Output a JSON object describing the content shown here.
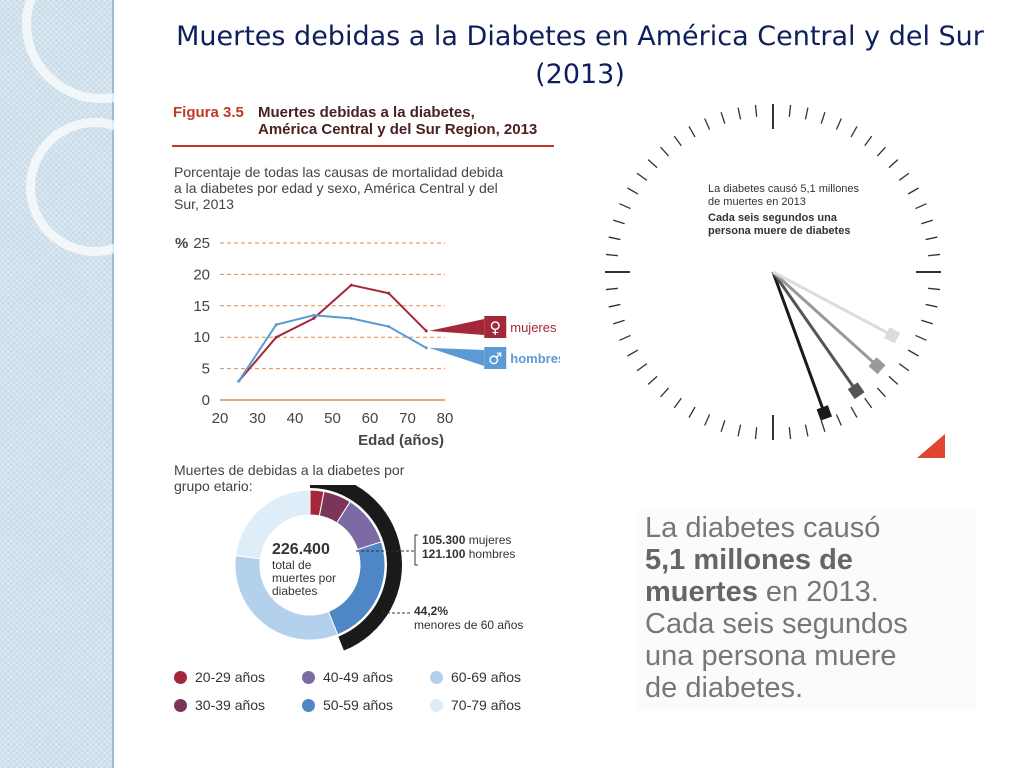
{
  "slide": {
    "title": "Muertes debidas a la Diabetes en América Central y del Sur (2013)"
  },
  "figure": {
    "label": "Figura 3.5",
    "title_line1": "Muertes debidas a la diabetes,",
    "title_line2": "América Central y del Sur Region, 2013",
    "subtitle_line1": "Porcentaje de todas las causas de mortalidad debida",
    "subtitle_line2": "a la diabetes por edad y sexo, América Central y del",
    "subtitle_line3": "Sur, 2013"
  },
  "chart_data": [
    {
      "type": "line",
      "title": "Porcentaje de todas las causas de mortalidad debida a la diabetes por edad y sexo, América Central y del Sur, 2013",
      "xlabel": "Edad (años)",
      "ylabel": "%",
      "xlim": [
        20,
        80
      ],
      "ylim": [
        0,
        25
      ],
      "x_ticks": [
        "20",
        "30",
        "40",
        "50",
        "60",
        "70",
        "80"
      ],
      "y_ticks": [
        "0",
        "5",
        "10",
        "15",
        "20",
        "25"
      ],
      "series": [
        {
          "name": "mujeres",
          "color": "#a3293a",
          "x": [
            25,
            35,
            45,
            55,
            65,
            75
          ],
          "values": [
            3,
            10,
            13,
            18.3,
            17,
            11
          ]
        },
        {
          "name": "hombres",
          "color": "#5b9bd5",
          "x": [
            25,
            35,
            45,
            55,
            65,
            75
          ],
          "values": [
            3,
            12,
            13.5,
            13,
            11.7,
            8.3
          ]
        }
      ]
    },
    {
      "type": "pie",
      "title": "Muertes de debidas a la diabetes por grupo etario:",
      "total": "226.400",
      "total_text": [
        "total de",
        "muertes por",
        "diabetes"
      ],
      "annotations": [
        {
          "value": "105.300",
          "label": "mujeres"
        },
        {
          "value": "121.100",
          "label": "hombres"
        },
        {
          "value": "44,2%",
          "label": "menores de 60 años"
        }
      ],
      "categories": [
        "20-29 años",
        "30-39 años",
        "40-49 años",
        "50-59 años",
        "60-69 años",
        "70-79 años"
      ],
      "values": [
        3,
        6,
        11,
        24,
        33,
        23
      ],
      "colors": [
        "#a3293a",
        "#7a3558",
        "#7c6aa5",
        "#4f86c6",
        "#b3d0ec",
        "#deedf8"
      ]
    }
  ],
  "donut_text": {
    "line1": "Muertes de debidas a la diabetes por",
    "line2": "grupo etario:"
  },
  "clock": {
    "caption1": "La diabetes causó 5,1 millones",
    "caption2": "de muertes en 2013",
    "caption3": "Cada seis segundos una",
    "caption4": "persona muere de diabetes"
  },
  "callout": {
    "line1": "La diabetes causó",
    "line2_bold": "5,1 millones de",
    "line3_bold": "muertes",
    "line3_rest": " en 2013.",
    "line4": "Cada seis segundos",
    "line5": "una persona muere",
    "line6": "de diabetes."
  }
}
